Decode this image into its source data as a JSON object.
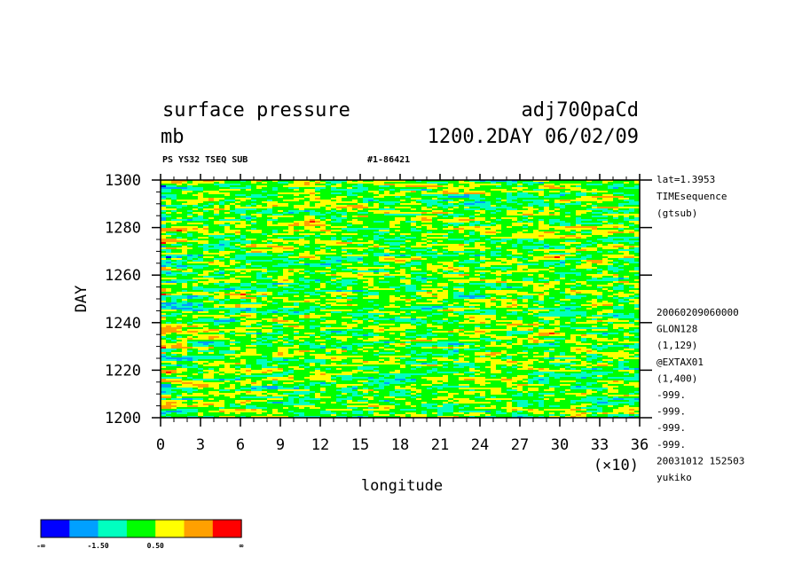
{
  "header": {
    "title_left": "surface pressure",
    "title_right": "adj700paCd",
    "units": "mb",
    "time_label": "1200.2DAY 06/02/09",
    "sub_left": "PS YS32 TSEQ SUB",
    "sub_right": "#1-86421"
  },
  "side_info": {
    "top": [
      "lat=1.3953",
      "TIMEsequence",
      "(gtsub)"
    ],
    "bottom": [
      "20060209060000",
      "GLON128",
      "(1,129)",
      "@EXTAX01",
      "(1,400)",
      "-999.",
      "-999.",
      "-999.",
      "-999.",
      "20031012 152503",
      "yukiko"
    ]
  },
  "chart_data": {
    "type": "heatmap",
    "title": "surface pressure",
    "xlabel": "longitude",
    "ylabel": "DAY",
    "x_multiplier_label": "(×10)",
    "xlim": [
      0,
      36
    ],
    "ylim": [
      1200,
      1300
    ],
    "x_ticks": [
      "0",
      "3",
      "6",
      "9",
      "12",
      "15",
      "18",
      "21",
      "24",
      "27",
      "30",
      "33",
      "36"
    ],
    "y_ticks": [
      "1200",
      "1220",
      "1240",
      "1260",
      "1280",
      "1300"
    ],
    "colorbar": {
      "colors": [
        "#0000ff",
        "#00a0ff",
        "#00ffc0",
        "#00ff00",
        "#ffff00",
        "#ffa000",
        "#ff0000"
      ],
      "labels": [
        "-∞",
        "-1.50",
        "0.50",
        "∞"
      ]
    }
  }
}
